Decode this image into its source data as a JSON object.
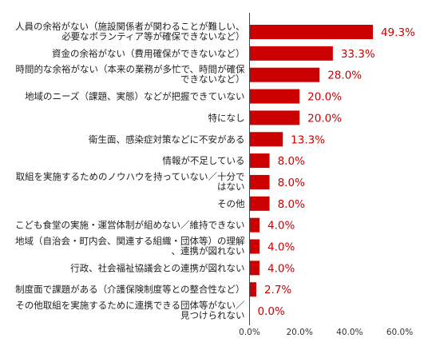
{
  "chart_data": {
    "type": "bar",
    "orientation": "horizontal",
    "bar_color": "#cc0000",
    "value_label_color": "#cc0000",
    "xlim": [
      0,
      60
    ],
    "x_ticks": [
      "0.0%",
      "20.0%",
      "40.0%",
      "60.0%"
    ],
    "x_tick_values": [
      0,
      20,
      40,
      60
    ],
    "grid": false,
    "legend": "none",
    "categories": [
      [
        "人員の余裕がない（施設関係者が関わることが難しい、",
        "必要なボランティア等が確保できないなど）"
      ],
      [
        "資金の余裕がない（費用確保ができないなど）"
      ],
      [
        "時間的な余裕がない（本来の業務が多忙で、時間が確保",
        "できないなど）"
      ],
      [
        "地域のニーズ（課題、実態）などが把握できていない"
      ],
      [
        "特になし"
      ],
      [
        "衛生面、感染症対策などに不安がある"
      ],
      [
        "情報が不足している"
      ],
      [
        "取組を実施するためのノウハウを持っていない／十分で",
        "はない"
      ],
      [
        "その他"
      ],
      [
        "こども食堂の実施・運営体制が組めない／維持できない"
      ],
      [
        "地域（自治会・町内会、関連する組織・団体等）の理解",
        "、連携が図れない"
      ],
      [
        "行政、社会福祉協議会との連携が図れない"
      ],
      [
        "制度面で課題がある（介護保険制度等との整合性など）"
      ],
      [
        "その他取組を実施するために連携できる団体等がない／",
        "見つけられない"
      ]
    ],
    "values": [
      49.3,
      33.3,
      28.0,
      20.0,
      20.0,
      13.3,
      8.0,
      8.0,
      8.0,
      4.0,
      4.0,
      4.0,
      2.7,
      0.0
    ],
    "value_labels": [
      "49.3%",
      "33.3%",
      "28.0%",
      "20.0%",
      "20.0%",
      "13.3%",
      "8.0%",
      "8.0%",
      "8.0%",
      "4.0%",
      "4.0%",
      "4.0%",
      "2.7%",
      "0.0%"
    ]
  }
}
